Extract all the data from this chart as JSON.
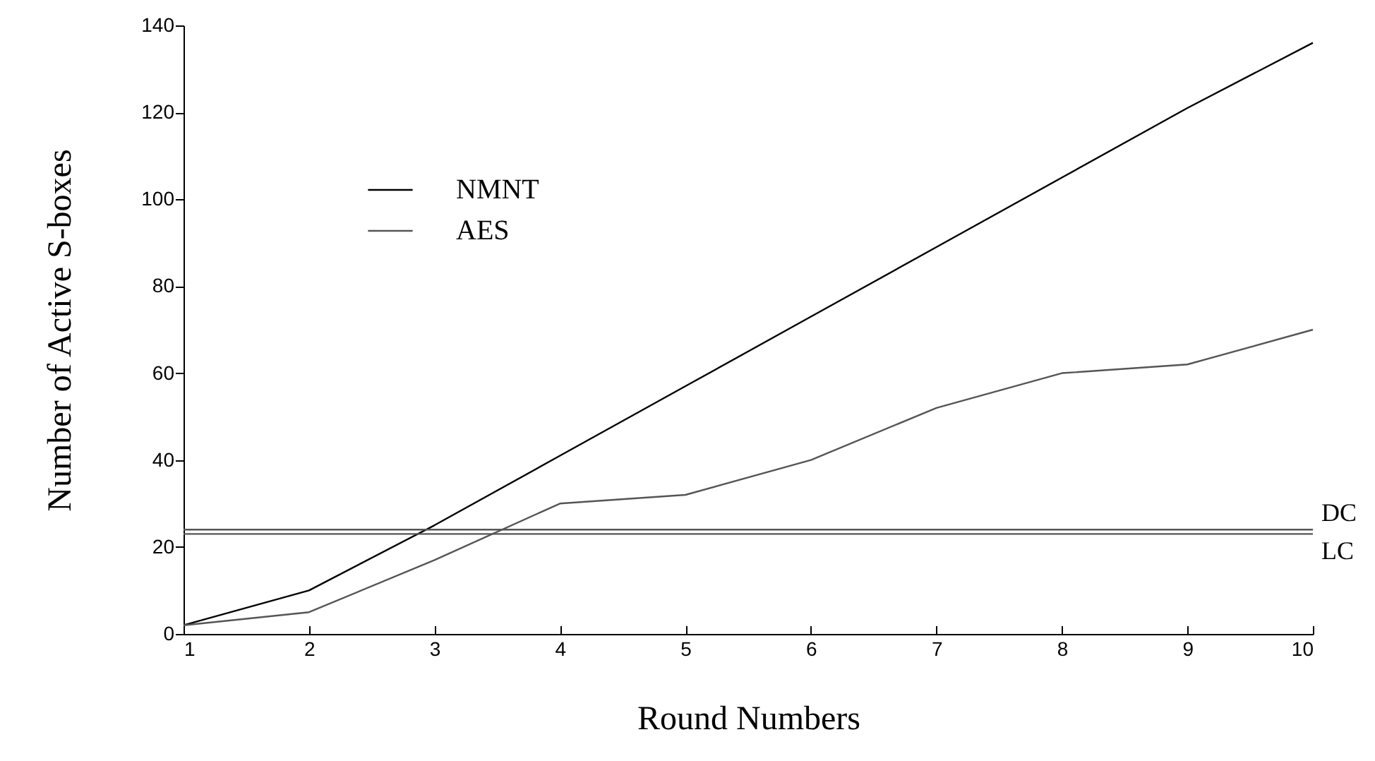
{
  "chart_data": {
    "type": "line",
    "xlabel": "Round Numbers",
    "ylabel": "Number of Active S-boxes",
    "x": [
      1,
      2,
      3,
      4,
      5,
      6,
      7,
      8,
      9,
      10
    ],
    "series": [
      {
        "name": "NMNT",
        "color": "#000000",
        "values": [
          2,
          10,
          25,
          41,
          57,
          73,
          89,
          105,
          121,
          136
        ]
      },
      {
        "name": "AES",
        "color": "#555555",
        "values": [
          2,
          5,
          17,
          30,
          32,
          40,
          52,
          60,
          62,
          70
        ]
      }
    ],
    "ref_lines": [
      {
        "axis": "y",
        "value": 24,
        "label": "DC",
        "color": "#555555"
      },
      {
        "axis": "y",
        "value": 23,
        "label": "LC",
        "color": "#555555"
      }
    ],
    "xlim": [
      1,
      10
    ],
    "xticks": [
      1,
      2,
      3,
      4,
      5,
      6,
      7,
      8,
      9,
      10
    ],
    "ylim": [
      0,
      140
    ],
    "yticks": [
      0,
      20,
      40,
      60,
      80,
      100,
      120,
      140
    ],
    "grid": false,
    "legend": "top left",
    "marker": "none",
    "line_style": "solid"
  }
}
